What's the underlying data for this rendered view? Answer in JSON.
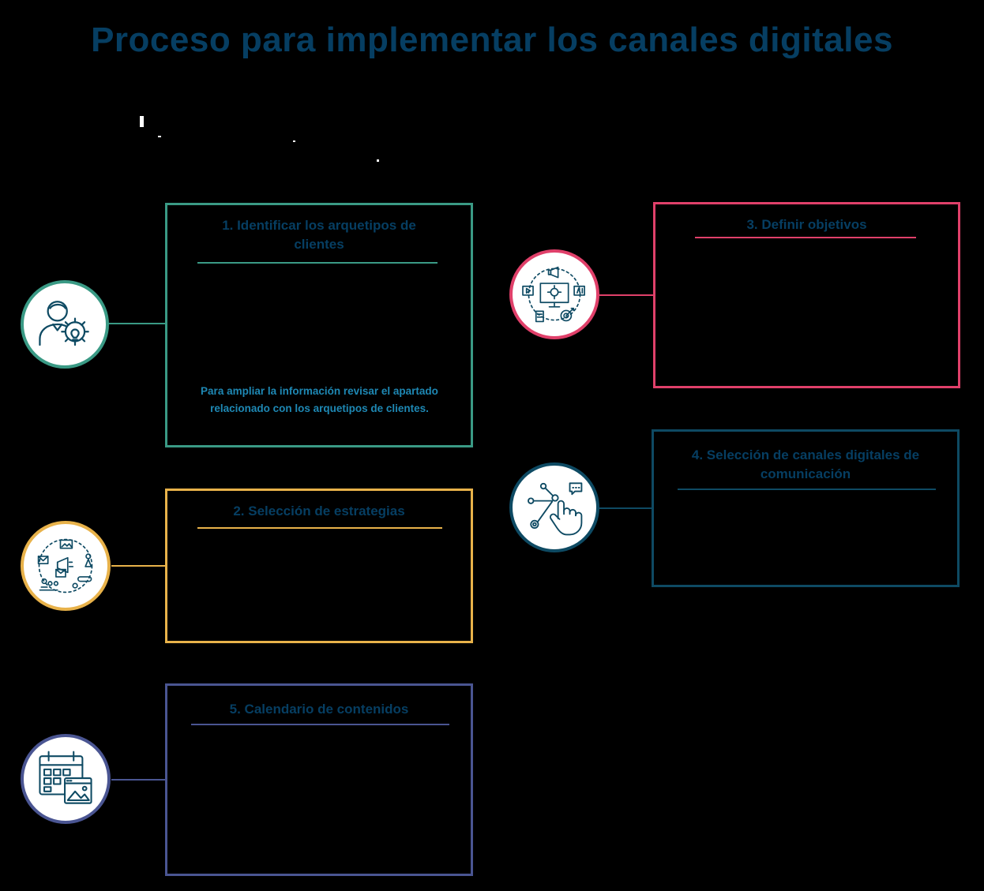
{
  "title": "Proceso para implementar los canales digitales",
  "colors": {
    "navy": "#063e62",
    "teal": "#3a9a85",
    "pink": "#e0406a",
    "gold": "#e8b24a",
    "petrol": "#0e4a63",
    "indigo": "#4a5592",
    "note_blue": "#1e88b4"
  },
  "steps": [
    {
      "title": "1. Identificar los arquetipos de clientes",
      "note": "Para ampliar la información revisar el apartado relacionado con los arquetipos de clientes.",
      "icon": "person-gear-icon"
    },
    {
      "title": "2. Selección de estrategias",
      "icon": "marketing-network-icon"
    },
    {
      "title": "3. Definir objetivos",
      "icon": "digital-marketing-monitor-icon"
    },
    {
      "title": "4. Selección de canales digitales de comunicación",
      "icon": "touch-network-icon"
    },
    {
      "title": "5. Calendario de contenidos",
      "icon": "calendar-content-icon"
    }
  ]
}
